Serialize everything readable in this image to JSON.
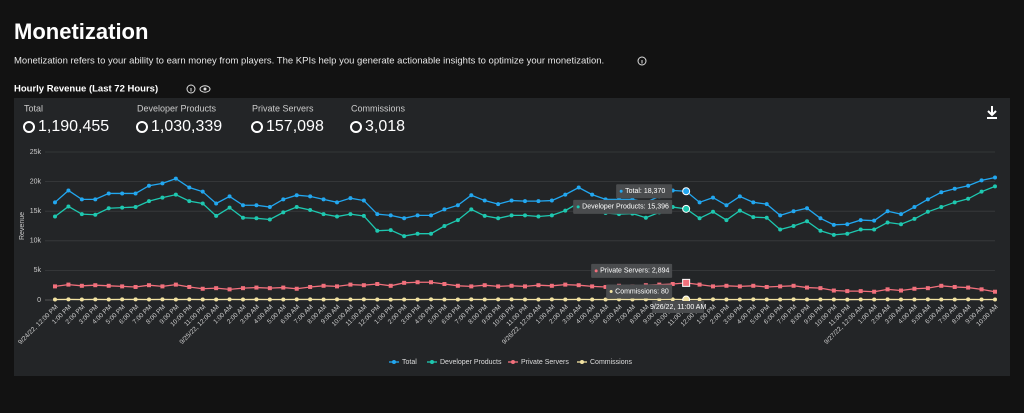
{
  "header": {
    "title": "Monetization",
    "description": "Monetization refers to your ability to earn money from players. The KPIs help you generate actionable insights to optimize your monetization.",
    "section_title": "Hourly Revenue (Last 72 Hours)"
  },
  "kpis": [
    {
      "label": "Total",
      "value": "1,190,455"
    },
    {
      "label": "Developer Products",
      "value": "1,030,339"
    },
    {
      "label": "Private Servers",
      "value": "157,098"
    },
    {
      "label": "Commissions",
      "value": "3,018"
    }
  ],
  "tooltip": {
    "index": 47,
    "date": "9/26/22, 11:00 AM",
    "items": [
      "Total: 18,370",
      "Developer Products: 15,396",
      "Private Servers: 2,894",
      "Commissions: 80"
    ]
  },
  "chart_data": {
    "type": "line",
    "y_label": "Revenue",
    "grid": true,
    "legend": "bottom",
    "ylim": [
      0,
      25000
    ],
    "yticks": [
      0,
      {
        "value": 5000,
        "label": "5k"
      },
      {
        "value": 10000,
        "label": "10k"
      },
      {
        "value": 15000,
        "label": "15k"
      },
      {
        "value": 20000,
        "label": "20k"
      },
      {
        "value": 25000,
        "label": "25k"
      }
    ],
    "categories": [
      "9/24/22, 12:00 PM",
      "1:00 PM",
      "2:00 PM",
      "3:00 PM",
      "4:00 PM",
      "5:00 PM",
      "6:00 PM",
      "7:00 PM",
      "8:00 PM",
      "9:00 PM",
      "10:00 PM",
      "11:00 PM",
      "9/25/22, 12:00 AM",
      "1:00 AM",
      "2:00 AM",
      "3:00 AM",
      "4:00 AM",
      "5:00 AM",
      "6:00 AM",
      "7:00 AM",
      "8:00 AM",
      "9:00 AM",
      "10:00 AM",
      "11:00 AM",
      "12:00 PM",
      "1:00 PM",
      "2:00 PM",
      "3:00 PM",
      "4:00 PM",
      "5:00 PM",
      "6:00 PM",
      "7:00 PM",
      "8:00 PM",
      "9:00 PM",
      "10:00 PM",
      "11:00 PM",
      "9/26/22, 12:00 AM",
      "1:00 AM",
      "2:00 AM",
      "3:00 AM",
      "4:00 AM",
      "5:00 AM",
      "6:00 AM",
      "7:00 AM",
      "8:00 AM",
      "9:00 AM",
      "10:00 AM",
      "11:00 AM",
      "12:00 PM",
      "1:00 PM",
      "2:00 PM",
      "3:00 PM",
      "4:00 PM",
      "5:00 PM",
      "6:00 PM",
      "7:00 PM",
      "8:00 PM",
      "9:00 PM",
      "10:00 PM",
      "11:00 PM",
      "9/27/22, 12:00 AM",
      "1:00 AM",
      "2:00 AM",
      "3:00 AM",
      "4:00 AM",
      "5:00 AM",
      "6:00 AM",
      "7:00 AM",
      "8:00 AM",
      "9:00 AM",
      "10:00 AM"
    ],
    "series": [
      {
        "name": "Total",
        "color": "#22a7f0",
        "values": [
          16500,
          18500,
          17000,
          17000,
          18000,
          18000,
          18000,
          19300,
          19700,
          20500,
          19000,
          18300,
          16300,
          17500,
          16000,
          16000,
          15700,
          17000,
          17700,
          17500,
          17000,
          16500,
          17200,
          16800,
          14500,
          14300,
          13800,
          14300,
          14300,
          15300,
          16000,
          17700,
          16800,
          16200,
          16800,
          16700,
          16700,
          16800,
          17800,
          19000,
          17800,
          17000,
          17000,
          17000,
          16500,
          17500,
          18500,
          18370,
          16500,
          17300,
          16000,
          17500,
          16500,
          16200,
          14300,
          15000,
          15500,
          13800,
          12700,
          12800,
          13500,
          13400,
          15000,
          14500,
          15700,
          17000,
          18200,
          18800,
          19300,
          20200,
          20700
        ]
      },
      {
        "name": "Developer Products",
        "color": "#1ec8b0",
        "values": [
          14100,
          15800,
          14500,
          14400,
          15500,
          15600,
          15700,
          16700,
          17300,
          17800,
          16700,
          16300,
          14200,
          15600,
          13900,
          13800,
          13600,
          14800,
          15700,
          15200,
          14500,
          14100,
          14500,
          14200,
          11700,
          11800,
          10800,
          11200,
          11200,
          12500,
          13500,
          15300,
          14200,
          13800,
          14300,
          14300,
          14100,
          14300,
          15100,
          16400,
          15400,
          14700,
          14500,
          14600,
          13900,
          14800,
          15700,
          15396,
          13800,
          14900,
          13500,
          15100,
          14000,
          13900,
          11900,
          12500,
          13300,
          11700,
          11000,
          11200,
          11900,
          11900,
          13100,
          12800,
          13700,
          14900,
          15700,
          16500,
          17100,
          18300,
          19200
        ]
      },
      {
        "name": "Private Servers",
        "color": "#f2707c",
        "values": [
          2300,
          2600,
          2400,
          2500,
          2400,
          2300,
          2200,
          2500,
          2300,
          2600,
          2200,
          1900,
          2000,
          1800,
          2000,
          2100,
          2000,
          2100,
          1900,
          2200,
          2400,
          2300,
          2600,
          2500,
          2700,
          2400,
          2900,
          3000,
          3000,
          2700,
          2400,
          2300,
          2500,
          2300,
          2400,
          2300,
          2500,
          2400,
          2600,
          2500,
          2300,
          2200,
          2400,
          2300,
          2500,
          2600,
          2700,
          2894,
          2600,
          2300,
          2400,
          2300,
          2400,
          2200,
          2300,
          2400,
          2100,
          2000,
          1600,
          1500,
          1500,
          1400,
          1800,
          1600,
          1900,
          2000,
          2400,
          2200,
          2100,
          1800,
          1400
        ]
      },
      {
        "name": "Commissions",
        "color": "#f3e3a2",
        "values": [
          90,
          100,
          80,
          100,
          90,
          100,
          110,
          90,
          100,
          80,
          100,
          90,
          80,
          100,
          90,
          100,
          80,
          90,
          100,
          110,
          90,
          100,
          80,
          100,
          90,
          70,
          80,
          90,
          100,
          90,
          80,
          100,
          90,
          110,
          100,
          90,
          80,
          100,
          90,
          100,
          90,
          80,
          100,
          90,
          100,
          90,
          100,
          80,
          90,
          100,
          80,
          90,
          100,
          90,
          80,
          100,
          90,
          80,
          90,
          70,
          80,
          90,
          100,
          80,
          90,
          100,
          90,
          80,
          100,
          90,
          80
        ]
      }
    ]
  }
}
